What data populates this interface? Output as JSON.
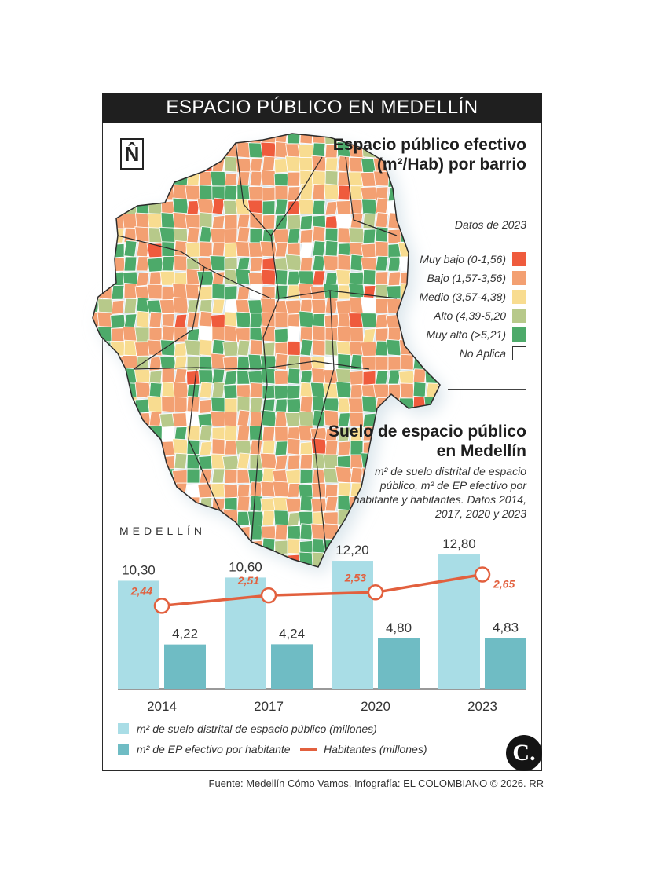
{
  "title": "ESPACIO PÚBLICO EN MEDELLÍN",
  "north_symbol": "N̂",
  "map_section": {
    "title": "Espacio público efectivo (m²/Hab) por barrio",
    "subtitle": "Datos de 2023",
    "legend": [
      {
        "label": "Muy bajo (0-1,56)",
        "color": "#ef5b3d"
      },
      {
        "label": "Bajo (1,57-3,56)",
        "color": "#f3a072"
      },
      {
        "label": "Medio (3,57-4,38)",
        "color": "#f8dc90"
      },
      {
        "label": "Alto (4,39-5,20",
        "color": "#b7c98a"
      },
      {
        "label": "Muy alto (>5,21)",
        "color": "#4daa6a"
      },
      {
        "label": "No Aplica",
        "color": "#ffffff"
      }
    ]
  },
  "chart_section": {
    "title": "Suelo de espacio público en Medellín",
    "subtitle": "m² de suelo distrital de espacio público, m² de EP efectivo por habitante y habitantes. Datos 2014, 2017, 2020 y 2023",
    "place_label": "MEDELLÍN"
  },
  "chart_data": {
    "type": "bar",
    "categories": [
      "2014",
      "2017",
      "2020",
      "2023"
    ],
    "series": [
      {
        "name": "m² de suelo distrital de espacio público (millones)",
        "values": [
          10.3,
          10.6,
          12.2,
          12.8
        ],
        "labels": [
          "10,30",
          "10,60",
          "12,20",
          "12,80"
        ],
        "color": "#a9dde6"
      },
      {
        "name": "m² de EP efectivo por habitante",
        "values": [
          4.22,
          4.24,
          4.8,
          4.83
        ],
        "labels": [
          "4,22",
          "4,24",
          "4,80",
          "4,83"
        ],
        "color": "#6fbcc4"
      },
      {
        "name": "Habitantes (millones)",
        "type": "line",
        "values": [
          2.44,
          2.51,
          2.53,
          2.65
        ],
        "labels": [
          "2,44",
          "2,51",
          "2,53",
          "2,65"
        ],
        "color": "#e2603e"
      }
    ],
    "ylim": [
      0,
      14
    ]
  },
  "source": "Fuente: Medellín Cómo Vamos. Infografía: EL COLOMBIANO © 2026. RR",
  "logo_text": "C."
}
